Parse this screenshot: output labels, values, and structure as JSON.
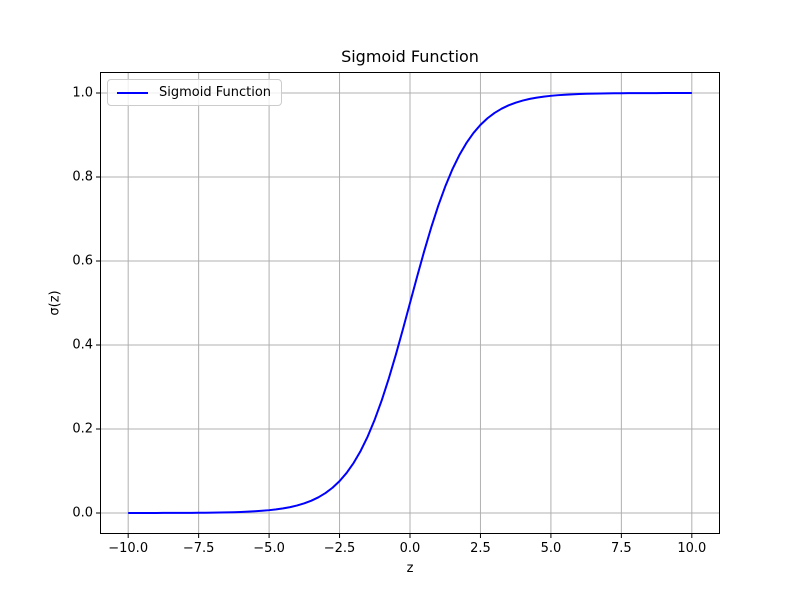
{
  "figure": {
    "background": "#ffffff",
    "spine_color": "#000000",
    "tick_color": "#000000"
  },
  "chart_data": {
    "type": "line",
    "title": "Sigmoid Function",
    "xlabel": "z",
    "ylabel": "σ(z)",
    "xlim": [
      -11,
      11
    ],
    "ylim": [
      -0.05,
      1.05
    ],
    "grid": true,
    "grid_color": "#b0b0b0",
    "legend": {
      "position": "upper left",
      "entries": [
        {
          "label": "Sigmoid Function",
          "color": "#0000ff"
        }
      ]
    },
    "x_ticks": {
      "values": [
        -10,
        -7.5,
        -5,
        -2.5,
        0,
        2.5,
        5,
        7.5,
        10
      ],
      "labels": [
        "−10.0",
        "−7.5",
        "−5.0",
        "−2.5",
        "0.0",
        "2.5",
        "5.0",
        "7.5",
        "10.0"
      ]
    },
    "y_ticks": {
      "values": [
        0.0,
        0.2,
        0.4,
        0.6,
        0.8,
        1.0
      ],
      "labels": [
        "0.0",
        "0.2",
        "0.4",
        "0.6",
        "0.8",
        "1.0"
      ]
    },
    "series": [
      {
        "name": "Sigmoid Function",
        "color": "#0000ff",
        "line_width": 2,
        "x": [
          -10.0,
          -9.75,
          -9.5,
          -9.25,
          -9.0,
          -8.75,
          -8.5,
          -8.25,
          -8.0,
          -7.75,
          -7.5,
          -7.25,
          -7.0,
          -6.75,
          -6.5,
          -6.25,
          -6.0,
          -5.75,
          -5.5,
          -5.25,
          -5.0,
          -4.75,
          -4.5,
          -4.25,
          -4.0,
          -3.75,
          -3.5,
          -3.25,
          -3.0,
          -2.75,
          -2.5,
          -2.25,
          -2.0,
          -1.75,
          -1.5,
          -1.25,
          -1.0,
          -0.75,
          -0.5,
          -0.25,
          0.0,
          0.25,
          0.5,
          0.75,
          1.0,
          1.25,
          1.5,
          1.75,
          2.0,
          2.25,
          2.5,
          2.75,
          3.0,
          3.25,
          3.5,
          3.75,
          4.0,
          4.25,
          4.5,
          4.75,
          5.0,
          5.25,
          5.5,
          5.75,
          6.0,
          6.25,
          6.5,
          6.75,
          7.0,
          7.25,
          7.5,
          7.75,
          8.0,
          8.25,
          8.5,
          8.75,
          9.0,
          9.25,
          9.5,
          9.75,
          10.0
        ],
        "y": [
          4.5e-05,
          5.8e-05,
          7.5e-05,
          9.6e-05,
          0.000123,
          0.000158,
          0.000203,
          0.000261,
          0.000335,
          0.000431,
          0.000553,
          0.00071,
          0.000911,
          0.00117,
          0.001503,
          0.001927,
          0.002473,
          0.003173,
          0.00407,
          0.005222,
          0.006693,
          0.008577,
          0.010987,
          0.014064,
          0.017986,
          0.022977,
          0.029312,
          0.037327,
          0.047426,
          0.060087,
          0.075858,
          0.095349,
          0.119203,
          0.148047,
          0.182426,
          0.2227,
          0.268941,
          0.320821,
          0.377541,
          0.437823,
          0.5,
          0.562177,
          0.622459,
          0.679179,
          0.731059,
          0.7773,
          0.817574,
          0.851953,
          0.880797,
          0.904651,
          0.924142,
          0.939913,
          0.952574,
          0.962673,
          0.970688,
          0.977023,
          0.982014,
          0.985936,
          0.989013,
          0.991423,
          0.993307,
          0.994778,
          0.99593,
          0.996827,
          0.997527,
          0.998073,
          0.998497,
          0.99883,
          0.999089,
          0.99929,
          0.999447,
          0.999569,
          0.999665,
          0.999739,
          0.999797,
          0.999842,
          0.999877,
          0.999904,
          0.999925,
          0.999942,
          0.999955
        ]
      }
    ]
  }
}
